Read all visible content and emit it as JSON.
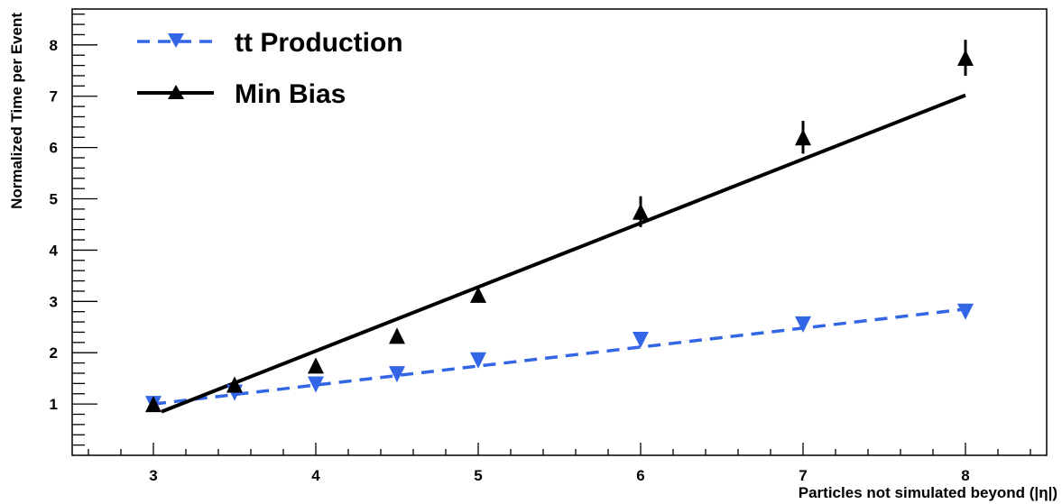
{
  "chart_data": {
    "type": "scatter",
    "title": "",
    "xlabel": "Particles not simulated beyond (|η|)",
    "ylabel": "Normalized Time per Event",
    "xlim": [
      2.5,
      8.5
    ],
    "ylim": [
      0,
      8.7
    ],
    "xticks": [
      3,
      4,
      5,
      6,
      7,
      8
    ],
    "yticks": [
      1,
      2,
      3,
      4,
      5,
      6,
      7,
      8
    ],
    "grid": false,
    "legend_position": "top-left",
    "series": [
      {
        "name": "tt Production",
        "color": "#3366e6",
        "marker": "triangle-down",
        "line_style": "dashed",
        "x": [
          3,
          3.5,
          4,
          4.5,
          5,
          6,
          7,
          8
        ],
        "y": [
          1.0,
          1.22,
          1.38,
          1.58,
          1.85,
          2.25,
          2.55,
          2.8
        ],
        "fit_line": {
          "x": [
            3,
            8
          ],
          "y": [
            1.0,
            2.85
          ]
        }
      },
      {
        "name": "Min Bias",
        "color": "#000000",
        "marker": "triangle-up",
        "line_style": "solid",
        "x": [
          3,
          3.5,
          4,
          4.5,
          5,
          6,
          7,
          8
        ],
        "y": [
          1.0,
          1.38,
          1.75,
          2.33,
          3.13,
          4.75,
          6.2,
          7.75
        ],
        "yerr": [
          0.05,
          0.06,
          0.1,
          0.12,
          0.15,
          0.3,
          0.32,
          0.35
        ],
        "fit_line": {
          "x": [
            3.05,
            8
          ],
          "y": [
            0.85,
            7.02
          ]
        }
      }
    ]
  }
}
